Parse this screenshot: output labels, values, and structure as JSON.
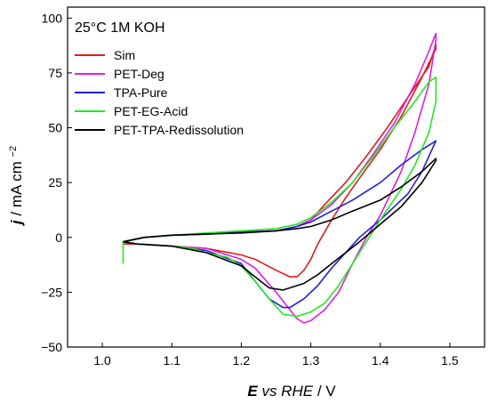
{
  "chart_data": {
    "type": "line",
    "annotation": "25°C 1M KOH",
    "xlabel": {
      "bold": "E",
      "italic": "vs RHE",
      "rest": " / V"
    },
    "ylabel": {
      "bold": "j",
      "rest": " / mA cm",
      "sup": "−2"
    },
    "xlim": [
      0.95,
      1.55
    ],
    "ylim": [
      -50,
      105
    ],
    "xticks": [
      1.0,
      1.1,
      1.2,
      1.3,
      1.4,
      1.5
    ],
    "xtick_labels": [
      "1.0",
      "1.1",
      "1.2",
      "1.3",
      "1.4",
      "1.5"
    ],
    "yticks": [
      -50,
      -25,
      0,
      25,
      50,
      75,
      100
    ],
    "ytick_labels": [
      "−50",
      "−25",
      "0",
      "25",
      "50",
      "75",
      "100"
    ],
    "legend_position": "top-left",
    "series": [
      {
        "name": "Sim",
        "color": "#e41a1c",
        "x": [
          1.03,
          1.06,
          1.1,
          1.15,
          1.2,
          1.25,
          1.28,
          1.3,
          1.32,
          1.35,
          1.38,
          1.41,
          1.44,
          1.47,
          1.48,
          1.48,
          1.46,
          1.43,
          1.4,
          1.37,
          1.35,
          1.33,
          1.31,
          1.3,
          1.29,
          1.28,
          1.27,
          1.25,
          1.22,
          1.2,
          1.15,
          1.1,
          1.05,
          1.03,
          1.03
        ],
        "y": [
          -2,
          0,
          1,
          1.5,
          2.5,
          3,
          5,
          8,
          15,
          25,
          37,
          50,
          64,
          78,
          88,
          86,
          73,
          55,
          40,
          27,
          18,
          8,
          -3,
          -10,
          -15,
          -18,
          -18,
          -15,
          -10,
          -8,
          -5,
          -4,
          -3,
          -3,
          -2
        ]
      },
      {
        "name": "PET-Deg",
        "color": "#e01ee0",
        "x": [
          1.03,
          1.06,
          1.1,
          1.15,
          1.2,
          1.25,
          1.28,
          1.3,
          1.33,
          1.36,
          1.39,
          1.42,
          1.45,
          1.47,
          1.48,
          1.48,
          1.47,
          1.45,
          1.43,
          1.4,
          1.38,
          1.36,
          1.34,
          1.32,
          1.3,
          1.29,
          1.28,
          1.27,
          1.25,
          1.22,
          1.2,
          1.15,
          1.1,
          1.05,
          1.03
        ],
        "y": [
          -2,
          0,
          1,
          1.5,
          2.5,
          3,
          5,
          8,
          15,
          25,
          38,
          52,
          70,
          85,
          93,
          90,
          70,
          48,
          30,
          10,
          0,
          -12,
          -25,
          -33,
          -38,
          -39,
          -37,
          -33,
          -25,
          -14,
          -10,
          -5,
          -4,
          -3,
          -2
        ]
      },
      {
        "name": "TPA-Pure",
        "color": "#1f1fd6",
        "x": [
          1.03,
          1.06,
          1.1,
          1.15,
          1.2,
          1.25,
          1.28,
          1.3,
          1.33,
          1.36,
          1.4,
          1.43,
          1.46,
          1.48,
          1.48,
          1.46,
          1.44,
          1.42,
          1.4,
          1.37,
          1.35,
          1.33,
          1.31,
          1.29,
          1.27,
          1.26,
          1.24,
          1.22,
          1.2,
          1.15,
          1.1,
          1.05,
          1.03
        ],
        "y": [
          -2,
          0,
          1,
          1.5,
          2.5,
          3,
          5,
          7,
          12,
          17,
          25,
          33,
          40,
          44,
          44,
          30,
          20,
          14,
          8,
          0,
          -7,
          -14,
          -22,
          -28,
          -32,
          -32,
          -28,
          -20,
          -12,
          -6,
          -4,
          -3,
          -2
        ]
      },
      {
        "name": "PET-EG-Acid",
        "color": "#22e822",
        "x": [
          1.03,
          1.06,
          1.1,
          1.15,
          1.2,
          1.25,
          1.28,
          1.3,
          1.33,
          1.36,
          1.39,
          1.42,
          1.45,
          1.47,
          1.48,
          1.48,
          1.47,
          1.45,
          1.43,
          1.4,
          1.38,
          1.36,
          1.34,
          1.32,
          1.3,
          1.28,
          1.26,
          1.24,
          1.22,
          1.2,
          1.18,
          1.15,
          1.13,
          1.1,
          1.05,
          1.03,
          1.03
        ],
        "y": [
          -2,
          0,
          1,
          2,
          3,
          4,
          6,
          9,
          16,
          25,
          37,
          50,
          62,
          71,
          73,
          62,
          48,
          33,
          22,
          8,
          -2,
          -12,
          -22,
          -30,
          -34,
          -36,
          -35,
          -28,
          -20,
          -13,
          -9,
          -7,
          -5,
          -4,
          -3,
          -2,
          -12
        ]
      },
      {
        "name": "PET-TPA-Redissolution",
        "color": "#000000",
        "x": [
          1.03,
          1.06,
          1.1,
          1.15,
          1.2,
          1.25,
          1.28,
          1.3,
          1.33,
          1.36,
          1.4,
          1.43,
          1.46,
          1.48,
          1.48,
          1.46,
          1.43,
          1.4,
          1.37,
          1.35,
          1.33,
          1.31,
          1.29,
          1.27,
          1.26,
          1.24,
          1.22,
          1.2,
          1.15,
          1.1,
          1.05,
          1.03
        ],
        "y": [
          -2,
          0,
          1,
          1.5,
          2,
          3,
          4,
          5,
          8,
          12,
          17,
          23,
          30,
          36,
          35,
          25,
          14,
          6,
          -2,
          -7,
          -12,
          -17,
          -21,
          -23,
          -24,
          -23,
          -18,
          -13,
          -7,
          -4,
          -3,
          -2
        ]
      }
    ]
  }
}
